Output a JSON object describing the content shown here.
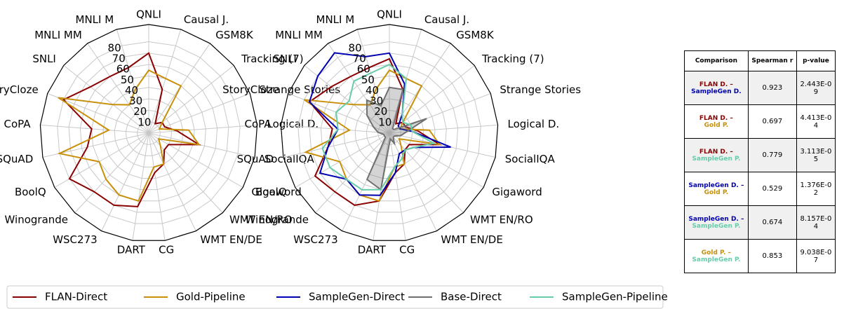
{
  "chart_data": [
    {
      "type": "radar",
      "categories": [
        "QNLI",
        "Causal J.",
        "GSM8K",
        "Tracking (7)",
        "Strange Stories",
        "Logical D.",
        "SocialIQA",
        "Gigaword",
        "WMT EN/RO",
        "WMT EN/DE",
        "CG",
        "DART",
        "WSC273",
        "Winogrande",
        "BoolQ",
        "SQuAD",
        "CoPA",
        "StoryCloze",
        "SNLI",
        "MNLI MM",
        "MNLI M"
      ],
      "rlim": [
        0,
        95
      ],
      "rticks": [
        10,
        20,
        30,
        40,
        50,
        60,
        70,
        80
      ],
      "grid": true,
      "series": [
        {
          "name": "FLAN-Direct",
          "color": "#8b0000",
          "values": [
            70,
            40,
            10,
            15,
            15,
            25,
            45,
            20,
            20,
            30,
            35,
            65,
            70,
            70,
            80,
            55,
            50,
            80,
            65,
            60,
            60
          ]
        },
        {
          "name": "Gold-Pipeline",
          "color": "#c8900a",
          "values": [
            55,
            50,
            50,
            15,
            10,
            35,
            45,
            10,
            15,
            30,
            30,
            60,
            60,
            55,
            50,
            80,
            35,
            85,
            40,
            30,
            40
          ]
        }
      ]
    },
    {
      "type": "radar",
      "categories": [
        "QNLI",
        "Causal J.",
        "GSM8K",
        "Tracking (7)",
        "Strange Stories",
        "Logical D.",
        "SocialIQA",
        "Gigaword",
        "WMT EN/RO",
        "WMT EN/DE",
        "CG",
        "DART",
        "WSC273",
        "Winogrande",
        "BoolQ",
        "SQuAD",
        "CoPA",
        "StoryCloze",
        "SNLI",
        "MNLI MM",
        "MNLI M"
      ],
      "rlim": [
        0,
        95
      ],
      "rticks": [
        10,
        20,
        30,
        40,
        50,
        60,
        70,
        80
      ],
      "grid": true,
      "series": [
        {
          "name": "FLAN-Direct",
          "color": "#8b0000",
          "values": [
            65,
            40,
            10,
            15,
            15,
            25,
            45,
            20,
            20,
            30,
            35,
            60,
            70,
            70,
            75,
            55,
            50,
            75,
            65,
            60,
            60
          ]
        },
        {
          "name": "Gold-Pipeline",
          "color": "#c8900a",
          "values": [
            55,
            50,
            50,
            15,
            10,
            35,
            45,
            10,
            15,
            30,
            30,
            60,
            60,
            55,
            50,
            75,
            35,
            80,
            40,
            30,
            40
          ]
        },
        {
          "name": "SampleGen-Direct",
          "color": "#0000b0",
          "values": [
            70,
            45,
            20,
            10,
            10,
            20,
            55,
            25,
            20,
            20,
            35,
            55,
            60,
            55,
            70,
            55,
            45,
            75,
            80,
            85,
            70
          ]
        },
        {
          "name": "Base-Direct",
          "color": "#707070",
          "fill": true,
          "values": [
            40,
            40,
            5,
            5,
            35,
            15,
            10,
            5,
            5,
            10,
            5,
            50,
            45,
            5,
            5,
            5,
            10,
            15,
            25,
            35,
            25
          ]
        },
        {
          "name": "SampleGen-Pipeline",
          "color": "#66ccaa",
          "values": [
            60,
            50,
            20,
            15,
            20,
            20,
            40,
            25,
            20,
            25,
            30,
            50,
            55,
            55,
            60,
            60,
            45,
            50,
            45,
            55,
            55
          ]
        }
      ]
    }
  ],
  "table": {
    "header": [
      "Comparison",
      "Spearman r",
      "p-value"
    ],
    "rows": [
      {
        "a": "FLAN D. –",
        "a_color": "#8b0000",
        "b": "SampleGen D.",
        "b_color": "#0000b0",
        "r": 0.923,
        "p": "2.443E-09"
      },
      {
        "a": "FLAN D. –",
        "a_color": "#8b0000",
        "b": "Gold P.",
        "b_color": "#c8900a",
        "r": 0.697,
        "p": "4.413E-04"
      },
      {
        "a": "FLAN D. –",
        "a_color": "#8b0000",
        "b": "SampleGen P.",
        "b_color": "#66ccaa",
        "r": 0.779,
        "p": "3.113E-05"
      },
      {
        "a": "SampleGen D. –",
        "a_color": "#0000b0",
        "b": "Gold P.",
        "b_color": "#c8900a",
        "r": 0.529,
        "p": "1.376E-02"
      },
      {
        "a": "SampleGen D. –",
        "a_color": "#0000b0",
        "b": "SampleGen P.",
        "b_color": "#66ccaa",
        "r": 0.674,
        "p": "8.157E-04"
      },
      {
        "a": "Gold P. –",
        "a_color": "#c8900a",
        "b": "SampleGen P.",
        "b_color": "#66ccaa",
        "r": 0.853,
        "p": "9.038E-07"
      }
    ]
  }
}
